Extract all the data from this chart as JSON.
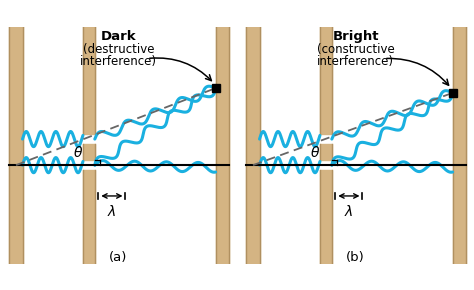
{
  "bg_color": "#ffffff",
  "wall_color": "#d4b483",
  "wall_edge_color": "#b09060",
  "wave_color": "#1ab0e0",
  "line_color": "#000000",
  "dashed_color": "#666666",
  "label_a": "(a)",
  "label_b": "(b)",
  "title_a": "Dark\n(destructive\ninterference)",
  "title_b": "Bright\n(constructive\ninterference)",
  "theta_label": "θ",
  "lambda_label": "λ",
  "figsize": [
    4.74,
    2.9
  ],
  "dpi": 100
}
